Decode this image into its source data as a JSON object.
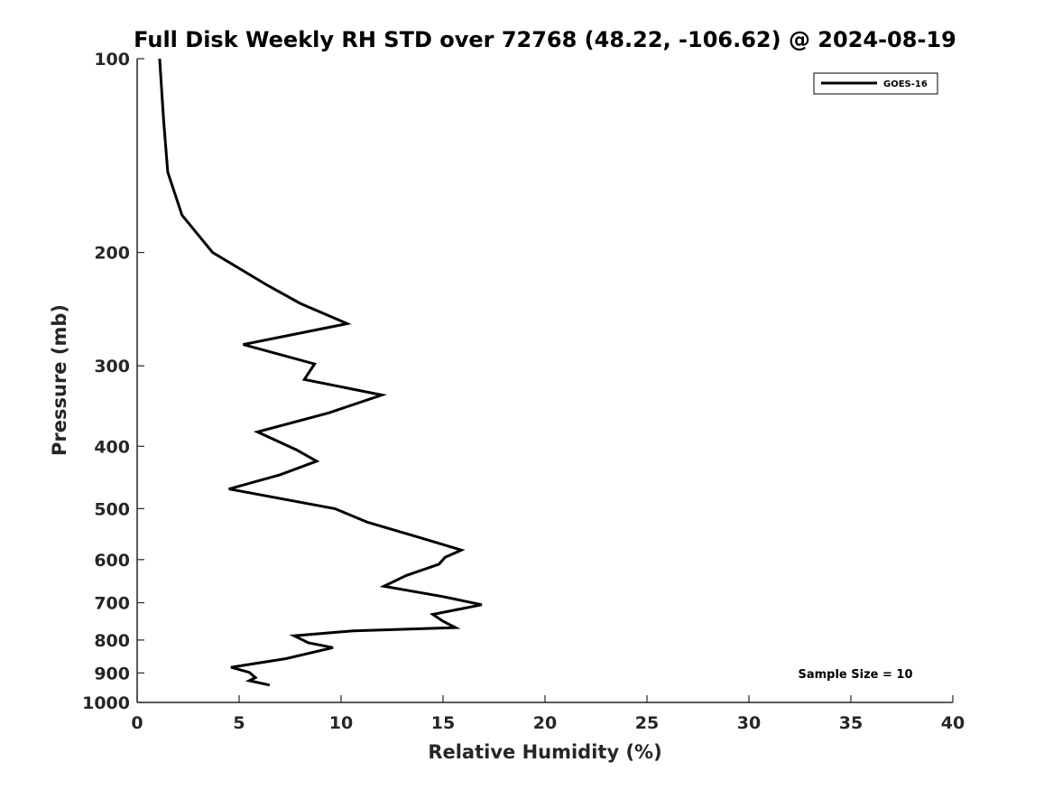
{
  "chart_data": {
    "type": "line",
    "title": "Full Disk Weekly RH STD over 72768 (48.22, -106.62) @ 2024-08-19",
    "xlabel": "Relative Humidity (%)",
    "ylabel": "Pressure (mb)",
    "xlim": [
      0,
      40
    ],
    "ylim": [
      100,
      1000
    ],
    "y_scale": "log",
    "y_reversed": true,
    "x_ticks": [
      0,
      5,
      10,
      15,
      20,
      25,
      30,
      35,
      40
    ],
    "y_ticks": [
      100,
      200,
      300,
      400,
      500,
      600,
      700,
      800,
      900,
      1000
    ],
    "grid": false,
    "legend_position": "top-right",
    "annotation": "Sample Size = 10",
    "series": [
      {
        "name": "GOES-16",
        "color": "#000000",
        "points": [
          [
            1.1,
            100
          ],
          [
            1.3,
            125
          ],
          [
            1.5,
            150
          ],
          [
            2.2,
            175
          ],
          [
            3.7,
            200
          ],
          [
            6.4,
            225
          ],
          [
            8.0,
            240
          ],
          [
            10.3,
            258
          ],
          [
            5.2,
            278
          ],
          [
            8.7,
            298
          ],
          [
            8.2,
            315
          ],
          [
            12.0,
            333
          ],
          [
            9.4,
            355
          ],
          [
            5.9,
            380
          ],
          [
            7.8,
            405
          ],
          [
            8.8,
            422
          ],
          [
            7.0,
            443
          ],
          [
            4.5,
            466
          ],
          [
            9.7,
            500
          ],
          [
            11.3,
            525
          ],
          [
            13.9,
            555
          ],
          [
            15.9,
            580
          ],
          [
            15.1,
            595
          ],
          [
            14.8,
            610
          ],
          [
            13.2,
            635
          ],
          [
            12.1,
            660
          ],
          [
            15.0,
            685
          ],
          [
            16.9,
            705
          ],
          [
            14.5,
            730
          ],
          [
            15.0,
            748
          ],
          [
            15.6,
            765
          ],
          [
            10.6,
            774
          ],
          [
            7.7,
            788
          ],
          [
            8.4,
            808
          ],
          [
            9.6,
            822
          ],
          [
            7.3,
            855
          ],
          [
            4.6,
            882
          ],
          [
            5.5,
            898
          ],
          [
            5.8,
            915
          ],
          [
            5.5,
            925
          ],
          [
            6.5,
            940
          ]
        ]
      }
    ]
  }
}
